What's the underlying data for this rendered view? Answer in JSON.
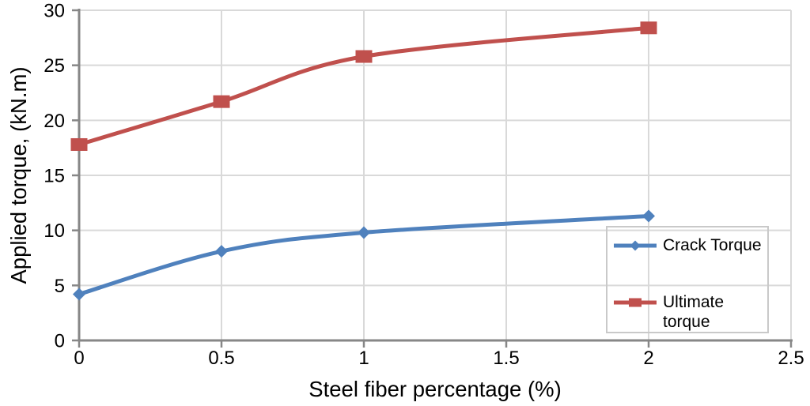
{
  "chart_data": {
    "type": "line",
    "title": "",
    "xlabel": "Steel fiber percentage (%)",
    "ylabel": "Applied torque, (kN.m)",
    "x": [
      0,
      0.5,
      1,
      2
    ],
    "series": [
      {
        "name": "Crack Torque",
        "color": "#4f81bd",
        "marker": "diamond",
        "values": [
          4.2,
          8.1,
          9.8,
          11.3
        ]
      },
      {
        "name": "Ultimate torque",
        "color": "#c0504d",
        "marker": "square",
        "values": [
          17.8,
          21.7,
          25.8,
          28.4
        ]
      }
    ],
    "xlim": [
      0,
      2.5
    ],
    "ylim": [
      0,
      30
    ],
    "xticks": [
      "0",
      "0.5",
      "1",
      "1.5",
      "2",
      "2.5"
    ],
    "yticks": [
      "0",
      "5",
      "10",
      "15",
      "20",
      "25",
      "30"
    ],
    "grid": true,
    "smooth": true,
    "legend_position": "inside-right"
  },
  "colors": {
    "background": "#ffffff",
    "grid": "#d9d9d9",
    "axis": "#878787",
    "text": "#000000",
    "legend_border": "#c9c9c9"
  }
}
